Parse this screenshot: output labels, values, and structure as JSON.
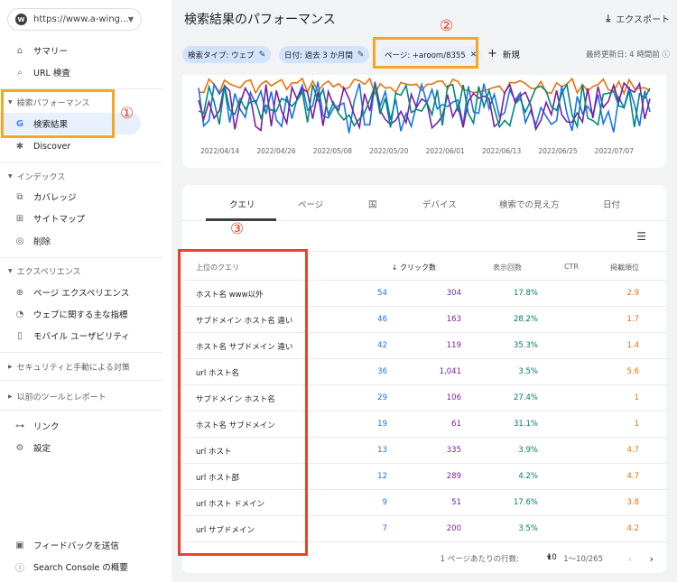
{
  "property": {
    "url": "https://www.a-wing...."
  },
  "nav": {
    "summary": "サマリー",
    "url_inspection": "URL 検査",
    "search_performance_header": "検索パフォーマンス",
    "search_results": "検索結果",
    "discover": "Discover",
    "index_header": "インデックス",
    "coverage": "カバレッジ",
    "sitemaps": "サイトマップ",
    "removals": "削除",
    "experience_header": "エクスペリエンス",
    "page_experience": "ページ エクスペリエンス",
    "web_vitals": "ウェブに関する主な指標",
    "mobile_usability": "モバイル ユーザビリティ",
    "security_header": "セキュリティと手動による対策",
    "legacy_header": "以前のツールとレポート",
    "links": "リンク",
    "settings": "設定",
    "feedback": "フィードバックを送信",
    "about": "Search Console の概要"
  },
  "annotations": {
    "one": "①",
    "two": "②",
    "three": "③"
  },
  "header": {
    "title": "検索結果のパフォーマンス",
    "export": "エクスポート"
  },
  "filters": {
    "search_type": "検索タイプ: ウェブ",
    "date": "日付: 過去 3 か月間",
    "page": "ページ: +aroom/8355",
    "new": "新規",
    "updated": "最終更新日: 4 時間前"
  },
  "chart_data": {
    "type": "line",
    "x_ticks": [
      "2022/04/14",
      "2022/04/26",
      "2022/05/08",
      "2022/05/20",
      "2022/06/01",
      "2022/06/13",
      "2022/06/25",
      "2022/07/07"
    ],
    "series": [
      {
        "color": "#e8710a"
      },
      {
        "color": "#1a73e8"
      },
      {
        "color": "#7b1fa2"
      },
      {
        "color": "#00897b"
      }
    ]
  },
  "tabs": [
    "クエリ",
    "ページ",
    "国",
    "デバイス",
    "検索での見え方",
    "日付"
  ],
  "table": {
    "headers": {
      "query": "上位のクエリ",
      "clicks": "クリック数",
      "impressions": "表示回数",
      "ctr": "CTR",
      "position": "掲載順位"
    },
    "rows": [
      {
        "query": "ホスト名 www以外",
        "clicks": "54",
        "impressions": "304",
        "ctr": "17.8%",
        "position": "2.9"
      },
      {
        "query": "サブドメイン ホスト名 違い",
        "clicks": "46",
        "impressions": "163",
        "ctr": "28.2%",
        "position": "1.7"
      },
      {
        "query": "ホスト名 サブドメイン 違い",
        "clicks": "42",
        "impressions": "119",
        "ctr": "35.3%",
        "position": "1.4"
      },
      {
        "query": "url ホスト名",
        "clicks": "36",
        "impressions": "1,041",
        "ctr": "3.5%",
        "position": "5.6"
      },
      {
        "query": "サブドメイン ホスト名",
        "clicks": "29",
        "impressions": "106",
        "ctr": "27.4%",
        "position": "1"
      },
      {
        "query": "ホスト名 サブドメイン",
        "clicks": "19",
        "impressions": "61",
        "ctr": "31.1%",
        "position": "1"
      },
      {
        "query": "url ホスト",
        "clicks": "13",
        "impressions": "335",
        "ctr": "3.9%",
        "position": "4.7"
      },
      {
        "query": "url ホスト部",
        "clicks": "12",
        "impressions": "289",
        "ctr": "4.2%",
        "position": "4.7"
      },
      {
        "query": "url ホスト ドメイン",
        "clicks": "9",
        "impressions": "51",
        "ctr": "17.6%",
        "position": "3.8"
      },
      {
        "query": "url サブドメイン",
        "clicks": "7",
        "impressions": "200",
        "ctr": "3.5%",
        "position": "4.2"
      }
    ]
  },
  "pager": {
    "rows_label": "1 ページあたりの行数:",
    "rows_value": "10",
    "range": "1〜10/265"
  }
}
